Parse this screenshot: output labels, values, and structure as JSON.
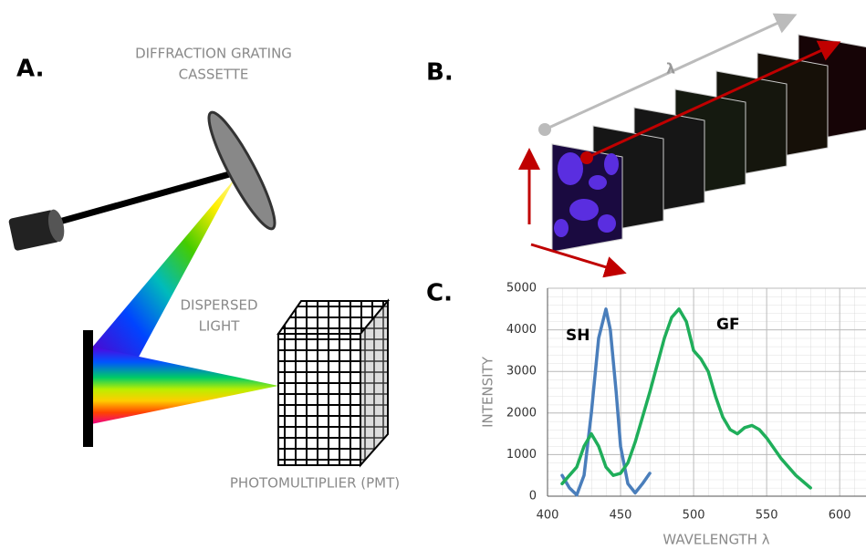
{
  "panels": {
    "a": {
      "label": "A.",
      "grating": [
        "DIFFRACTION GRATING",
        "CASSETTE"
      ],
      "dispersed": [
        "DISPERSED",
        "LIGHT"
      ],
      "detector": "PHOTOMULTIPLIER (PMT)"
    },
    "b": {
      "label": "B.",
      "axis": "λ"
    },
    "c": {
      "label": "C."
    }
  },
  "chart_data": {
    "type": "line",
    "x_label": "WAVELENGTH λ",
    "y_label": "INTENSITY",
    "xlim": [
      400,
      618
    ],
    "ylim": [
      0,
      5000
    ],
    "xticks": [
      400,
      450,
      500,
      550,
      600
    ],
    "yticks": [
      0,
      1000,
      2000,
      3000,
      4000,
      5000
    ],
    "grid": true,
    "series": [
      {
        "name": "SH",
        "color": "#4a7ebb",
        "x": [
          410,
          415,
          420,
          425,
          430,
          435,
          440,
          443,
          447,
          450,
          455,
          460,
          465,
          470
        ],
        "values": [
          500,
          200,
          30,
          500,
          2000,
          3800,
          4500,
          4000,
          2500,
          1200,
          300,
          80,
          300,
          550
        ]
      },
      {
        "name": "GF",
        "color": "#1fae5a",
        "x": [
          410,
          420,
          425,
          430,
          435,
          440,
          445,
          450,
          455,
          460,
          470,
          480,
          485,
          490,
          495,
          500,
          505,
          510,
          515,
          520,
          525,
          530,
          535,
          540,
          545,
          550,
          560,
          570,
          580
        ],
        "values": [
          300,
          700,
          1200,
          1500,
          1200,
          700,
          500,
          550,
          800,
          1300,
          2500,
          3800,
          4300,
          4500,
          4200,
          3500,
          3300,
          3000,
          2400,
          1900,
          1600,
          1500,
          1650,
          1700,
          1600,
          1400,
          900,
          500,
          200
        ]
      }
    ]
  }
}
